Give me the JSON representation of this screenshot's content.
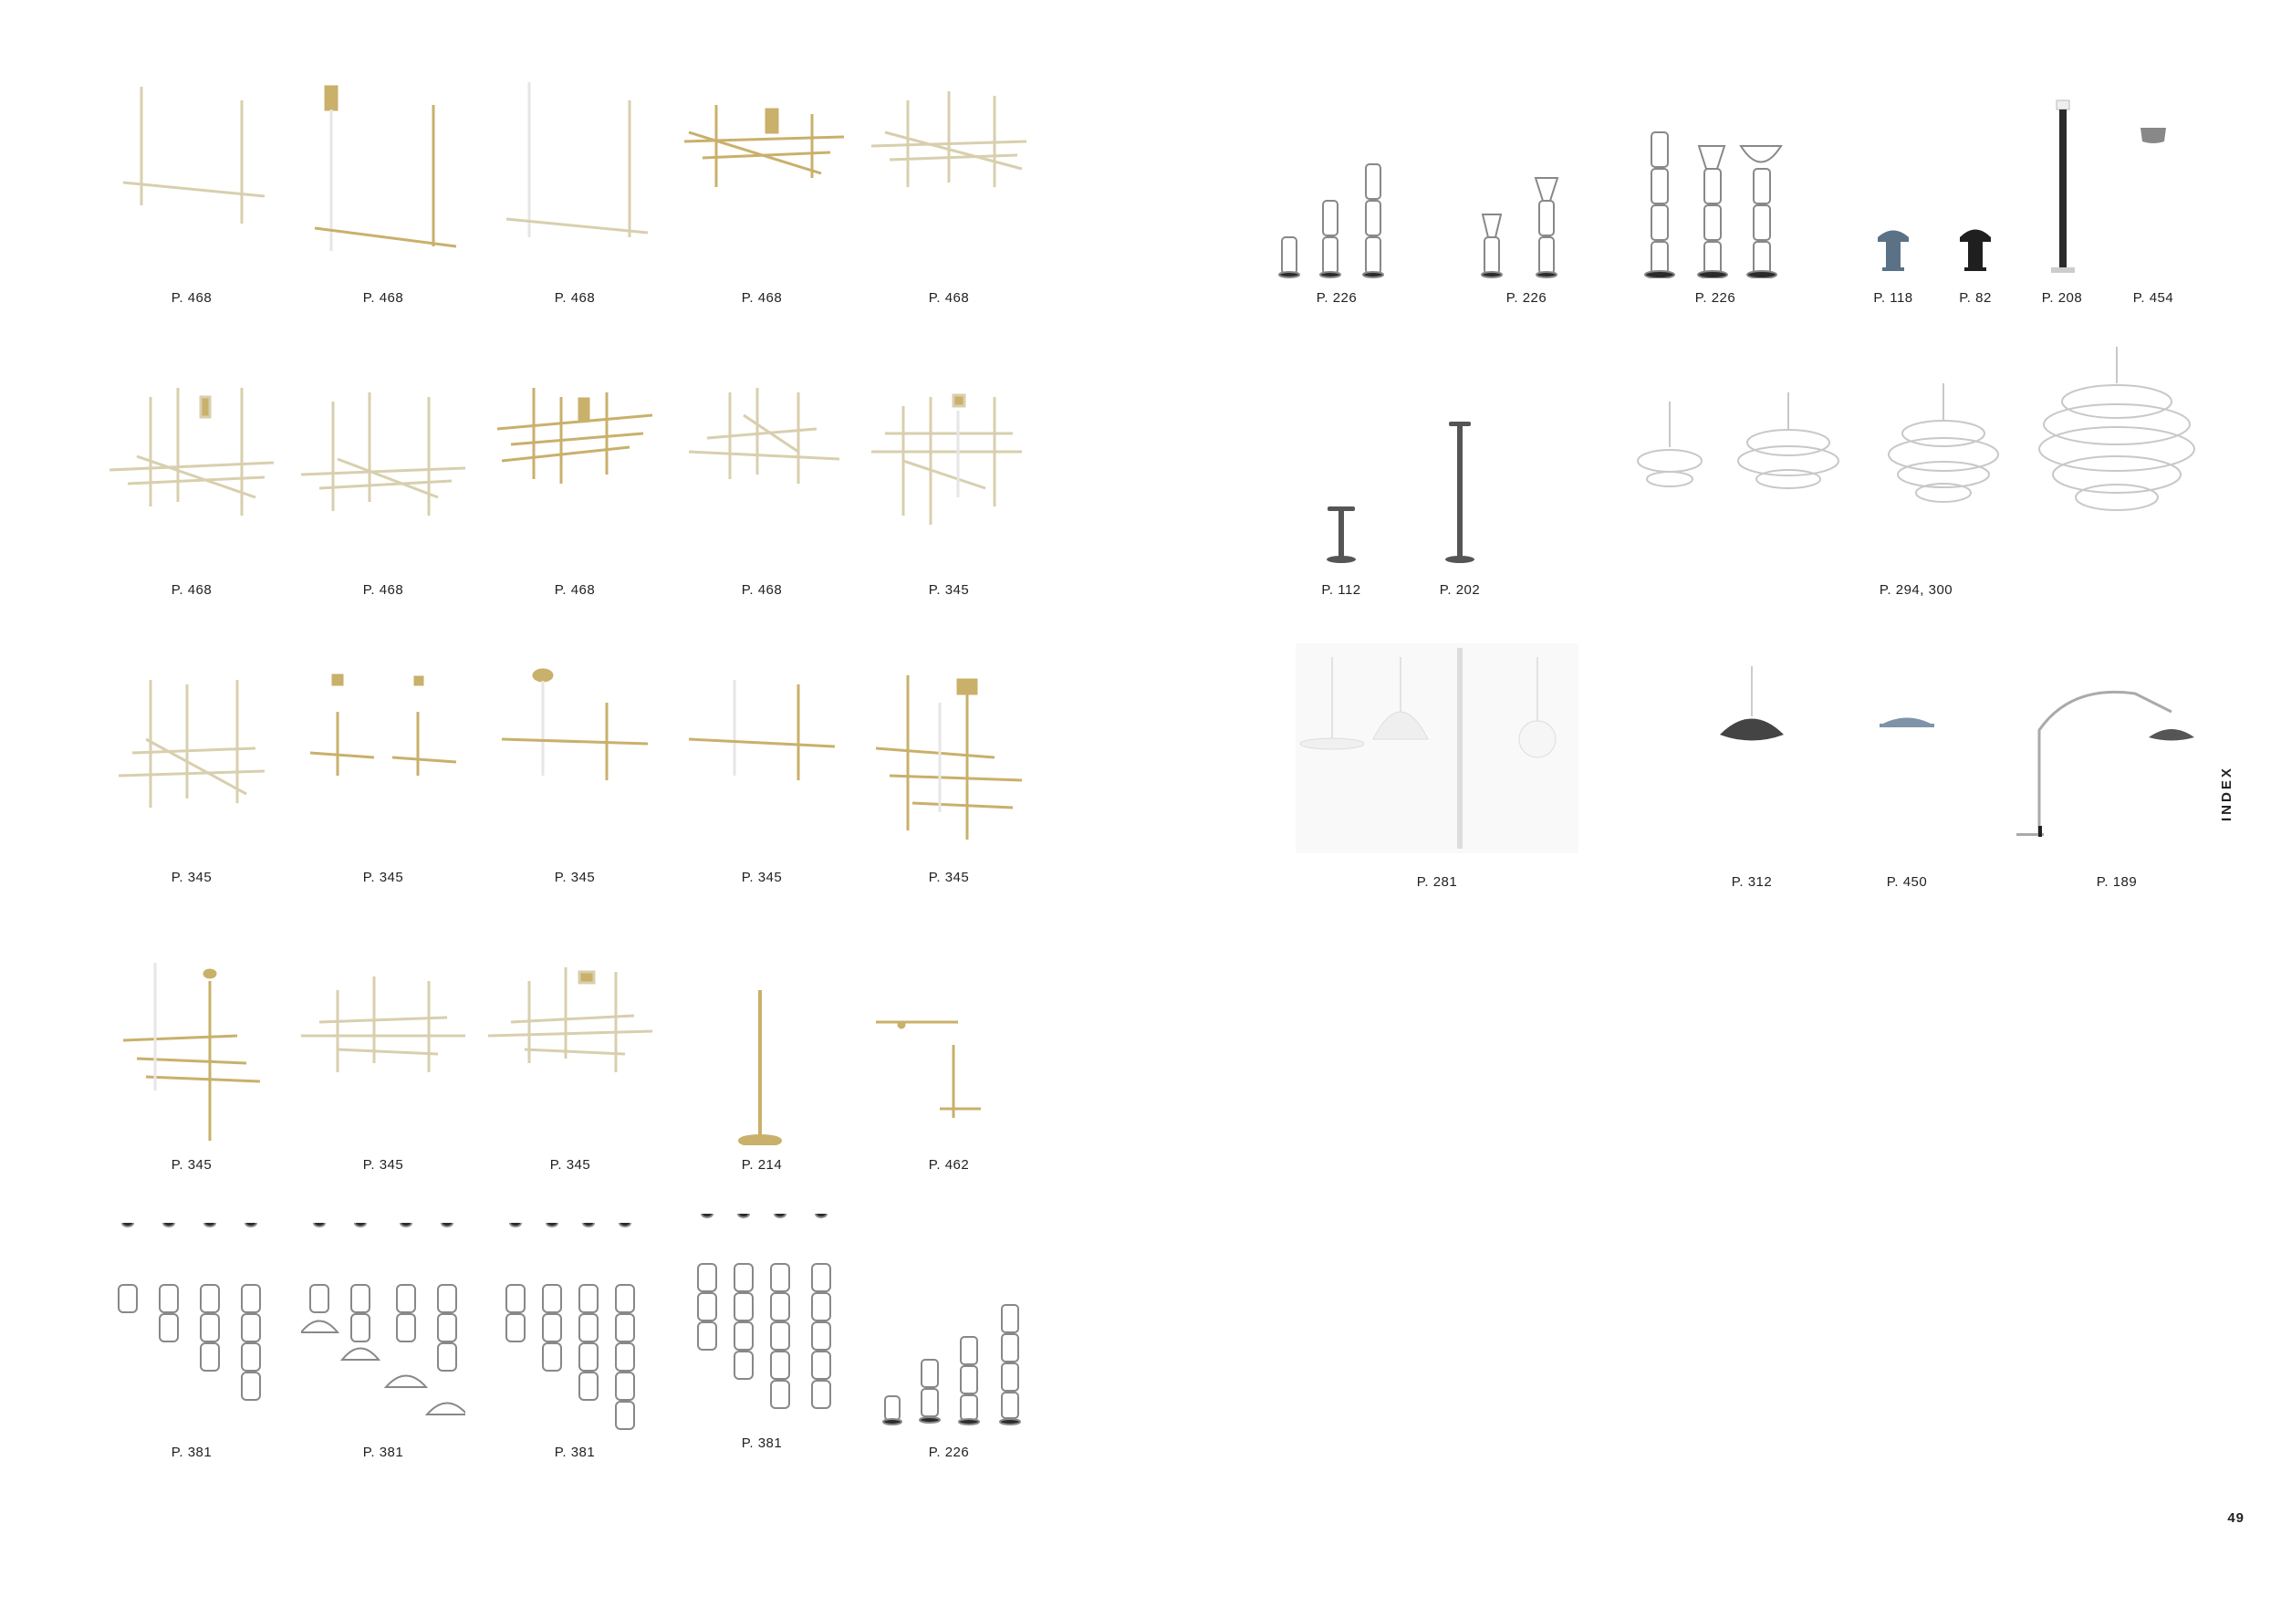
{
  "side_tab": "INDEX",
  "page_number": "49",
  "colors": {
    "brass": "#c9b06b",
    "white_fixture": "#e6e6e6",
    "dark": "#2b2b2b",
    "glass": "#bfc3c7",
    "blue_grey": "#5b7186"
  },
  "left": {
    "row1": [
      "P. 468",
      "P. 468",
      "P. 468",
      "P. 468",
      "P. 468"
    ],
    "row2": [
      "P. 468",
      "P. 468",
      "P. 468",
      "P. 468",
      "P. 345"
    ],
    "row3": [
      "P. 345",
      "P. 345",
      "P. 345",
      "P. 345",
      "P. 345"
    ],
    "row4": [
      "P. 345",
      "P. 345",
      "P. 345",
      "P. 214",
      "P. 462"
    ],
    "row5": [
      "P. 381",
      "P. 381",
      "P. 381",
      "P. 381",
      "P. 226"
    ]
  },
  "right": {
    "row1": [
      "P. 226",
      "P. 226",
      "P. 226",
      "P. 118",
      "P. 82",
      "P. 208",
      "P. 454"
    ],
    "row2": [
      "P. 112",
      "P. 202",
      "P. 294, 300"
    ],
    "row3": [
      "P. 281",
      "P. 312",
      "P. 450",
      "P. 189"
    ]
  }
}
